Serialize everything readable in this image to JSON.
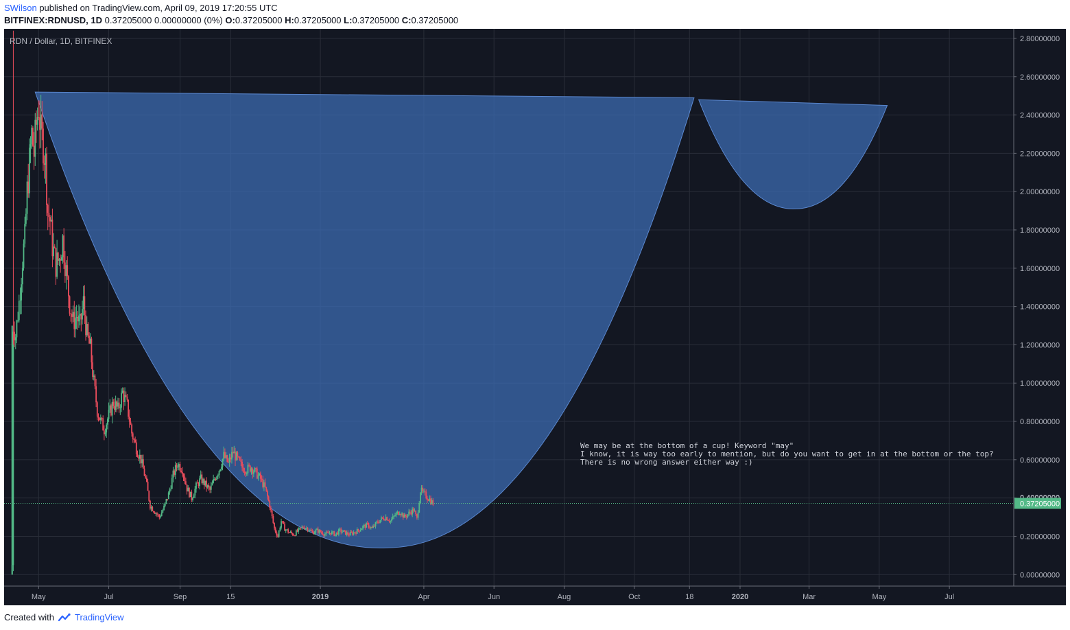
{
  "header": {
    "user": "SWilson",
    "published_text": "published on TradingView.com, April 09, 2019 17:20:55 UTC",
    "symbol": "BITFINEX:RDNUSD",
    "interval": "1D",
    "price": "0.37205000",
    "change": "0.00000000 (0%)",
    "ohlc": [
      {
        "label": "O:",
        "value": "0.37205000"
      },
      {
        "label": "H:",
        "value": "0.37205000"
      },
      {
        "label": "L:",
        "value": "0.37205000"
      },
      {
        "label": "C:",
        "value": "0.37205000"
      }
    ]
  },
  "footer": {
    "created_with": "Created with",
    "brand": "TradingView"
  },
  "colors": {
    "background": "#131722",
    "up": "#53b987",
    "down": "#eb4d5c",
    "shape_fill": "#3d6db5",
    "shape_edge": "#5b88d0",
    "last_price_bg": "#53b987"
  },
  "chart_data": {
    "type": "candlestick",
    "title": "RDN / Dollar, 1D, BITFINEX",
    "ylim": [
      -0.06,
      2.85
    ],
    "y_ticks": [
      "2.80000000",
      "2.60000000",
      "2.40000000",
      "2.20000000",
      "2.00000000",
      "1.80000000",
      "1.60000000",
      "1.40000000",
      "1.20000000",
      "1.00000000",
      "0.80000000",
      "0.60000000",
      "0.40000000",
      "0.20000000",
      "0.00000000"
    ],
    "x_ticks": [
      {
        "label": "May",
        "date": "2018-05-01",
        "bold": false
      },
      {
        "label": "Jul",
        "date": "2018-07-01",
        "bold": false
      },
      {
        "label": "Sep",
        "date": "2018-09-01",
        "bold": false
      },
      {
        "label": "15",
        "date": "2018-10-15",
        "bold": false
      },
      {
        "label": "2019",
        "date": "2019-01-01",
        "bold": true
      },
      {
        "label": "Apr",
        "date": "2019-04-01",
        "bold": false
      },
      {
        "label": "Jun",
        "date": "2019-06-01",
        "bold": false
      },
      {
        "label": "Aug",
        "date": "2019-08-01",
        "bold": false
      },
      {
        "label": "Oct",
        "date": "2019-10-01",
        "bold": false
      },
      {
        "label": "18",
        "date": "2019-11-18",
        "bold": false
      },
      {
        "label": "2020",
        "date": "2020-01-01",
        "bold": true
      },
      {
        "label": "Mar",
        "date": "2020-03-01",
        "bold": false
      },
      {
        "label": "May",
        "date": "2020-05-01",
        "bold": false
      },
      {
        "label": "Jul",
        "date": "2020-07-01",
        "bold": false
      }
    ],
    "last_price": 0.37205,
    "last_price_label": "0.37205000",
    "hidden_label": "0.40000000",
    "price_path": [
      [
        "2018-04-08",
        0.0
      ],
      [
        "2018-04-09",
        1.3
      ],
      [
        "2018-04-11",
        1.25
      ],
      [
        "2018-04-14",
        1.42
      ],
      [
        "2018-04-17",
        1.65
      ],
      [
        "2018-04-19",
        1.75
      ],
      [
        "2018-04-21",
        2.0
      ],
      [
        "2018-04-23",
        2.15
      ],
      [
        "2018-04-25",
        2.3
      ],
      [
        "2018-04-27",
        2.2
      ],
      [
        "2018-04-29",
        2.35
      ],
      [
        "2018-05-01",
        2.45
      ],
      [
        "2018-05-03",
        2.3
      ],
      [
        "2018-05-05",
        2.25
      ],
      [
        "2018-05-07",
        2.15
      ],
      [
        "2018-05-09",
        1.9
      ],
      [
        "2018-05-11",
        1.85
      ],
      [
        "2018-05-13",
        1.72
      ],
      [
        "2018-05-16",
        1.62
      ],
      [
        "2018-05-19",
        1.65
      ],
      [
        "2018-05-22",
        1.75
      ],
      [
        "2018-05-25",
        1.58
      ],
      [
        "2018-05-28",
        1.42
      ],
      [
        "2018-05-31",
        1.32
      ],
      [
        "2018-06-03",
        1.35
      ],
      [
        "2018-06-06",
        1.3
      ],
      [
        "2018-06-09",
        1.42
      ],
      [
        "2018-06-12",
        1.25
      ],
      [
        "2018-06-15",
        1.18
      ],
      [
        "2018-06-18",
        1.0
      ],
      [
        "2018-06-21",
        0.86
      ],
      [
        "2018-06-24",
        0.8
      ],
      [
        "2018-06-27",
        0.76
      ],
      [
        "2018-07-01",
        0.83
      ],
      [
        "2018-07-05",
        0.9
      ],
      [
        "2018-07-09",
        0.86
      ],
      [
        "2018-07-13",
        0.95
      ],
      [
        "2018-07-17",
        0.88
      ],
      [
        "2018-07-21",
        0.74
      ],
      [
        "2018-07-25",
        0.66
      ],
      [
        "2018-07-29",
        0.6
      ],
      [
        "2018-08-02",
        0.5
      ],
      [
        "2018-08-06",
        0.36
      ],
      [
        "2018-08-10",
        0.33
      ],
      [
        "2018-08-14",
        0.3
      ],
      [
        "2018-08-18",
        0.35
      ],
      [
        "2018-08-22",
        0.42
      ],
      [
        "2018-08-26",
        0.52
      ],
      [
        "2018-08-30",
        0.58
      ],
      [
        "2018-09-03",
        0.55
      ],
      [
        "2018-09-07",
        0.45
      ],
      [
        "2018-09-11",
        0.4
      ],
      [
        "2018-09-15",
        0.46
      ],
      [
        "2018-09-19",
        0.5
      ],
      [
        "2018-09-23",
        0.47
      ],
      [
        "2018-09-27",
        0.44
      ],
      [
        "2018-10-01",
        0.5
      ],
      [
        "2018-10-05",
        0.55
      ],
      [
        "2018-10-09",
        0.62
      ],
      [
        "2018-10-13",
        0.58
      ],
      [
        "2018-10-17",
        0.64
      ],
      [
        "2018-10-21",
        0.6
      ],
      [
        "2018-10-25",
        0.56
      ],
      [
        "2018-10-29",
        0.55
      ],
      [
        "2018-11-02",
        0.56
      ],
      [
        "2018-11-06",
        0.53
      ],
      [
        "2018-11-10",
        0.5
      ],
      [
        "2018-11-14",
        0.45
      ],
      [
        "2018-11-18",
        0.36
      ],
      [
        "2018-11-22",
        0.24
      ],
      [
        "2018-11-25",
        0.2
      ],
      [
        "2018-11-28",
        0.28
      ],
      [
        "2018-12-01",
        0.24
      ],
      [
        "2018-12-05",
        0.22
      ],
      [
        "2018-12-09",
        0.21
      ],
      [
        "2018-12-13",
        0.23
      ],
      [
        "2018-12-17",
        0.25
      ],
      [
        "2018-12-21",
        0.24
      ],
      [
        "2018-12-25",
        0.22
      ],
      [
        "2018-12-29",
        0.23
      ],
      [
        "2019-01-02",
        0.22
      ],
      [
        "2019-01-06",
        0.21
      ],
      [
        "2019-01-10",
        0.22
      ],
      [
        "2019-01-14",
        0.21
      ],
      [
        "2019-01-18",
        0.23
      ],
      [
        "2019-01-22",
        0.22
      ],
      [
        "2019-01-26",
        0.21
      ],
      [
        "2019-01-30",
        0.22
      ],
      [
        "2019-02-03",
        0.23
      ],
      [
        "2019-02-07",
        0.25
      ],
      [
        "2019-02-11",
        0.26
      ],
      [
        "2019-02-15",
        0.24
      ],
      [
        "2019-02-19",
        0.27
      ],
      [
        "2019-02-23",
        0.29
      ],
      [
        "2019-02-27",
        0.3
      ],
      [
        "2019-03-03",
        0.28
      ],
      [
        "2019-03-07",
        0.31
      ],
      [
        "2019-03-11",
        0.33
      ],
      [
        "2019-03-15",
        0.3
      ],
      [
        "2019-03-19",
        0.32
      ],
      [
        "2019-03-23",
        0.34
      ],
      [
        "2019-03-26",
        0.29
      ],
      [
        "2019-03-29",
        0.44
      ],
      [
        "2019-04-01",
        0.42
      ],
      [
        "2019-04-05",
        0.4
      ],
      [
        "2019-04-09",
        0.37205
      ]
    ],
    "drawings": {
      "cup": {
        "left": [
          "2018-04-28",
          2.52
        ],
        "bottom": [
          "2019-02-28",
          0.14
        ],
        "right": [
          "2019-11-22",
          2.49
        ]
      },
      "handle": {
        "left": [
          "2019-11-26",
          2.48
        ],
        "bottom": [
          "2020-02-18",
          1.91
        ],
        "right": [
          "2020-05-08",
          2.45
        ]
      }
    },
    "annotation": [
      "We may be at the bottom of a cup! Keyword \"may\"",
      "I know, it is way too early to mention, but do you want to get in at the bottom or the top?",
      "There is no wrong answer either way :)"
    ],
    "annotation_anchor": [
      "2019-08-15",
      0.66
    ]
  }
}
